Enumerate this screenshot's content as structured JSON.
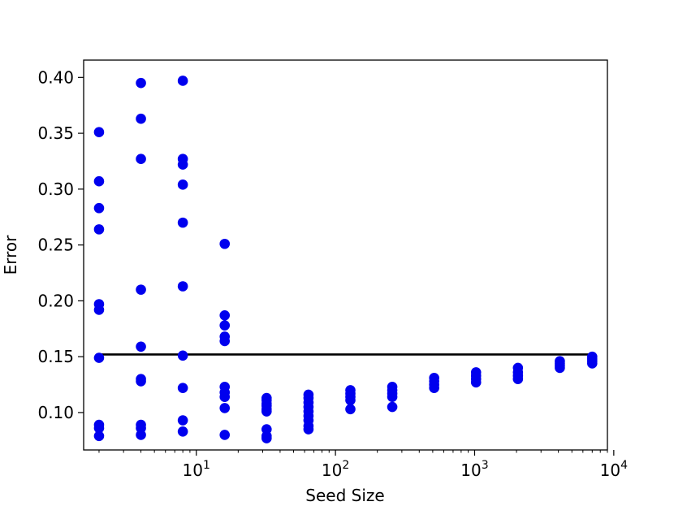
{
  "chart_data": {
    "type": "scatter",
    "title": "",
    "xlabel": "Seed Size",
    "ylabel": "Error",
    "xscale": "log",
    "xlim": [
      1.55,
      9000
    ],
    "ylim": [
      0.0665,
      0.4155
    ],
    "grid": false,
    "legend": "none",
    "x_ticks": [
      {
        "value": 10,
        "base": "10",
        "exp": "1"
      },
      {
        "value": 100,
        "base": "10",
        "exp": "2"
      },
      {
        "value": 1000,
        "base": "10",
        "exp": "3"
      },
      {
        "value": 10000,
        "base": "10",
        "exp": "4"
      }
    ],
    "y_ticks": [
      {
        "value": 0.1,
        "label": "0.10"
      },
      {
        "value": 0.15,
        "label": "0.15"
      },
      {
        "value": 0.2,
        "label": "0.20"
      },
      {
        "value": 0.25,
        "label": "0.25"
      },
      {
        "value": 0.3,
        "label": "0.30"
      },
      {
        "value": 0.35,
        "label": "0.35"
      },
      {
        "value": 0.4,
        "label": "0.40"
      }
    ],
    "series": [
      {
        "color": "#0000ee",
        "points": [
          [
            2,
            0.351
          ],
          [
            2,
            0.307
          ],
          [
            2,
            0.283
          ],
          [
            2,
            0.264
          ],
          [
            2,
            0.197
          ],
          [
            2,
            0.192
          ],
          [
            2,
            0.149
          ],
          [
            2,
            0.089
          ],
          [
            2,
            0.086
          ],
          [
            2,
            0.079
          ],
          [
            4,
            0.395
          ],
          [
            4,
            0.363
          ],
          [
            4,
            0.327
          ],
          [
            4,
            0.21
          ],
          [
            4,
            0.159
          ],
          [
            4,
            0.13
          ],
          [
            4,
            0.128
          ],
          [
            4,
            0.089
          ],
          [
            4,
            0.086
          ],
          [
            4,
            0.08
          ],
          [
            8,
            0.397
          ],
          [
            8,
            0.327
          ],
          [
            8,
            0.322
          ],
          [
            8,
            0.304
          ],
          [
            8,
            0.27
          ],
          [
            8,
            0.213
          ],
          [
            8,
            0.151
          ],
          [
            8,
            0.122
          ],
          [
            8,
            0.093
          ],
          [
            8,
            0.083
          ],
          [
            16,
            0.251
          ],
          [
            16,
            0.187
          ],
          [
            16,
            0.178
          ],
          [
            16,
            0.168
          ],
          [
            16,
            0.164
          ],
          [
            16,
            0.123
          ],
          [
            16,
            0.118
          ],
          [
            16,
            0.114
          ],
          [
            16,
            0.104
          ],
          [
            16,
            0.08
          ],
          [
            32,
            0.113
          ],
          [
            32,
            0.111
          ],
          [
            32,
            0.108
          ],
          [
            32,
            0.106
          ],
          [
            32,
            0.103
          ],
          [
            32,
            0.101
          ],
          [
            32,
            0.085
          ],
          [
            32,
            0.079
          ],
          [
            32,
            0.077
          ],
          [
            64,
            0.116
          ],
          [
            64,
            0.113
          ],
          [
            64,
            0.109
          ],
          [
            64,
            0.105
          ],
          [
            64,
            0.101
          ],
          [
            64,
            0.097
          ],
          [
            64,
            0.093
          ],
          [
            64,
            0.088
          ],
          [
            64,
            0.085
          ],
          [
            128,
            0.12
          ],
          [
            128,
            0.117
          ],
          [
            128,
            0.114
          ],
          [
            128,
            0.111
          ],
          [
            128,
            0.103
          ],
          [
            256,
            0.123
          ],
          [
            256,
            0.12
          ],
          [
            256,
            0.117
          ],
          [
            256,
            0.114
          ],
          [
            256,
            0.105
          ],
          [
            512,
            0.131
          ],
          [
            512,
            0.128
          ],
          [
            512,
            0.125
          ],
          [
            512,
            0.122
          ],
          [
            1024,
            0.136
          ],
          [
            1024,
            0.133
          ],
          [
            1024,
            0.13
          ],
          [
            1024,
            0.127
          ],
          [
            2048,
            0.14
          ],
          [
            2048,
            0.136
          ],
          [
            2048,
            0.133
          ],
          [
            2048,
            0.13
          ],
          [
            4096,
            0.146
          ],
          [
            4096,
            0.144
          ],
          [
            4096,
            0.142
          ],
          [
            4096,
            0.14
          ],
          [
            7000,
            0.15
          ],
          [
            7000,
            0.148
          ],
          [
            7000,
            0.146
          ],
          [
            7000,
            0.144
          ]
        ]
      }
    ],
    "reference_line": {
      "y": 0.152,
      "x_from": 2,
      "x_to": 7000,
      "color": "#000000"
    }
  }
}
